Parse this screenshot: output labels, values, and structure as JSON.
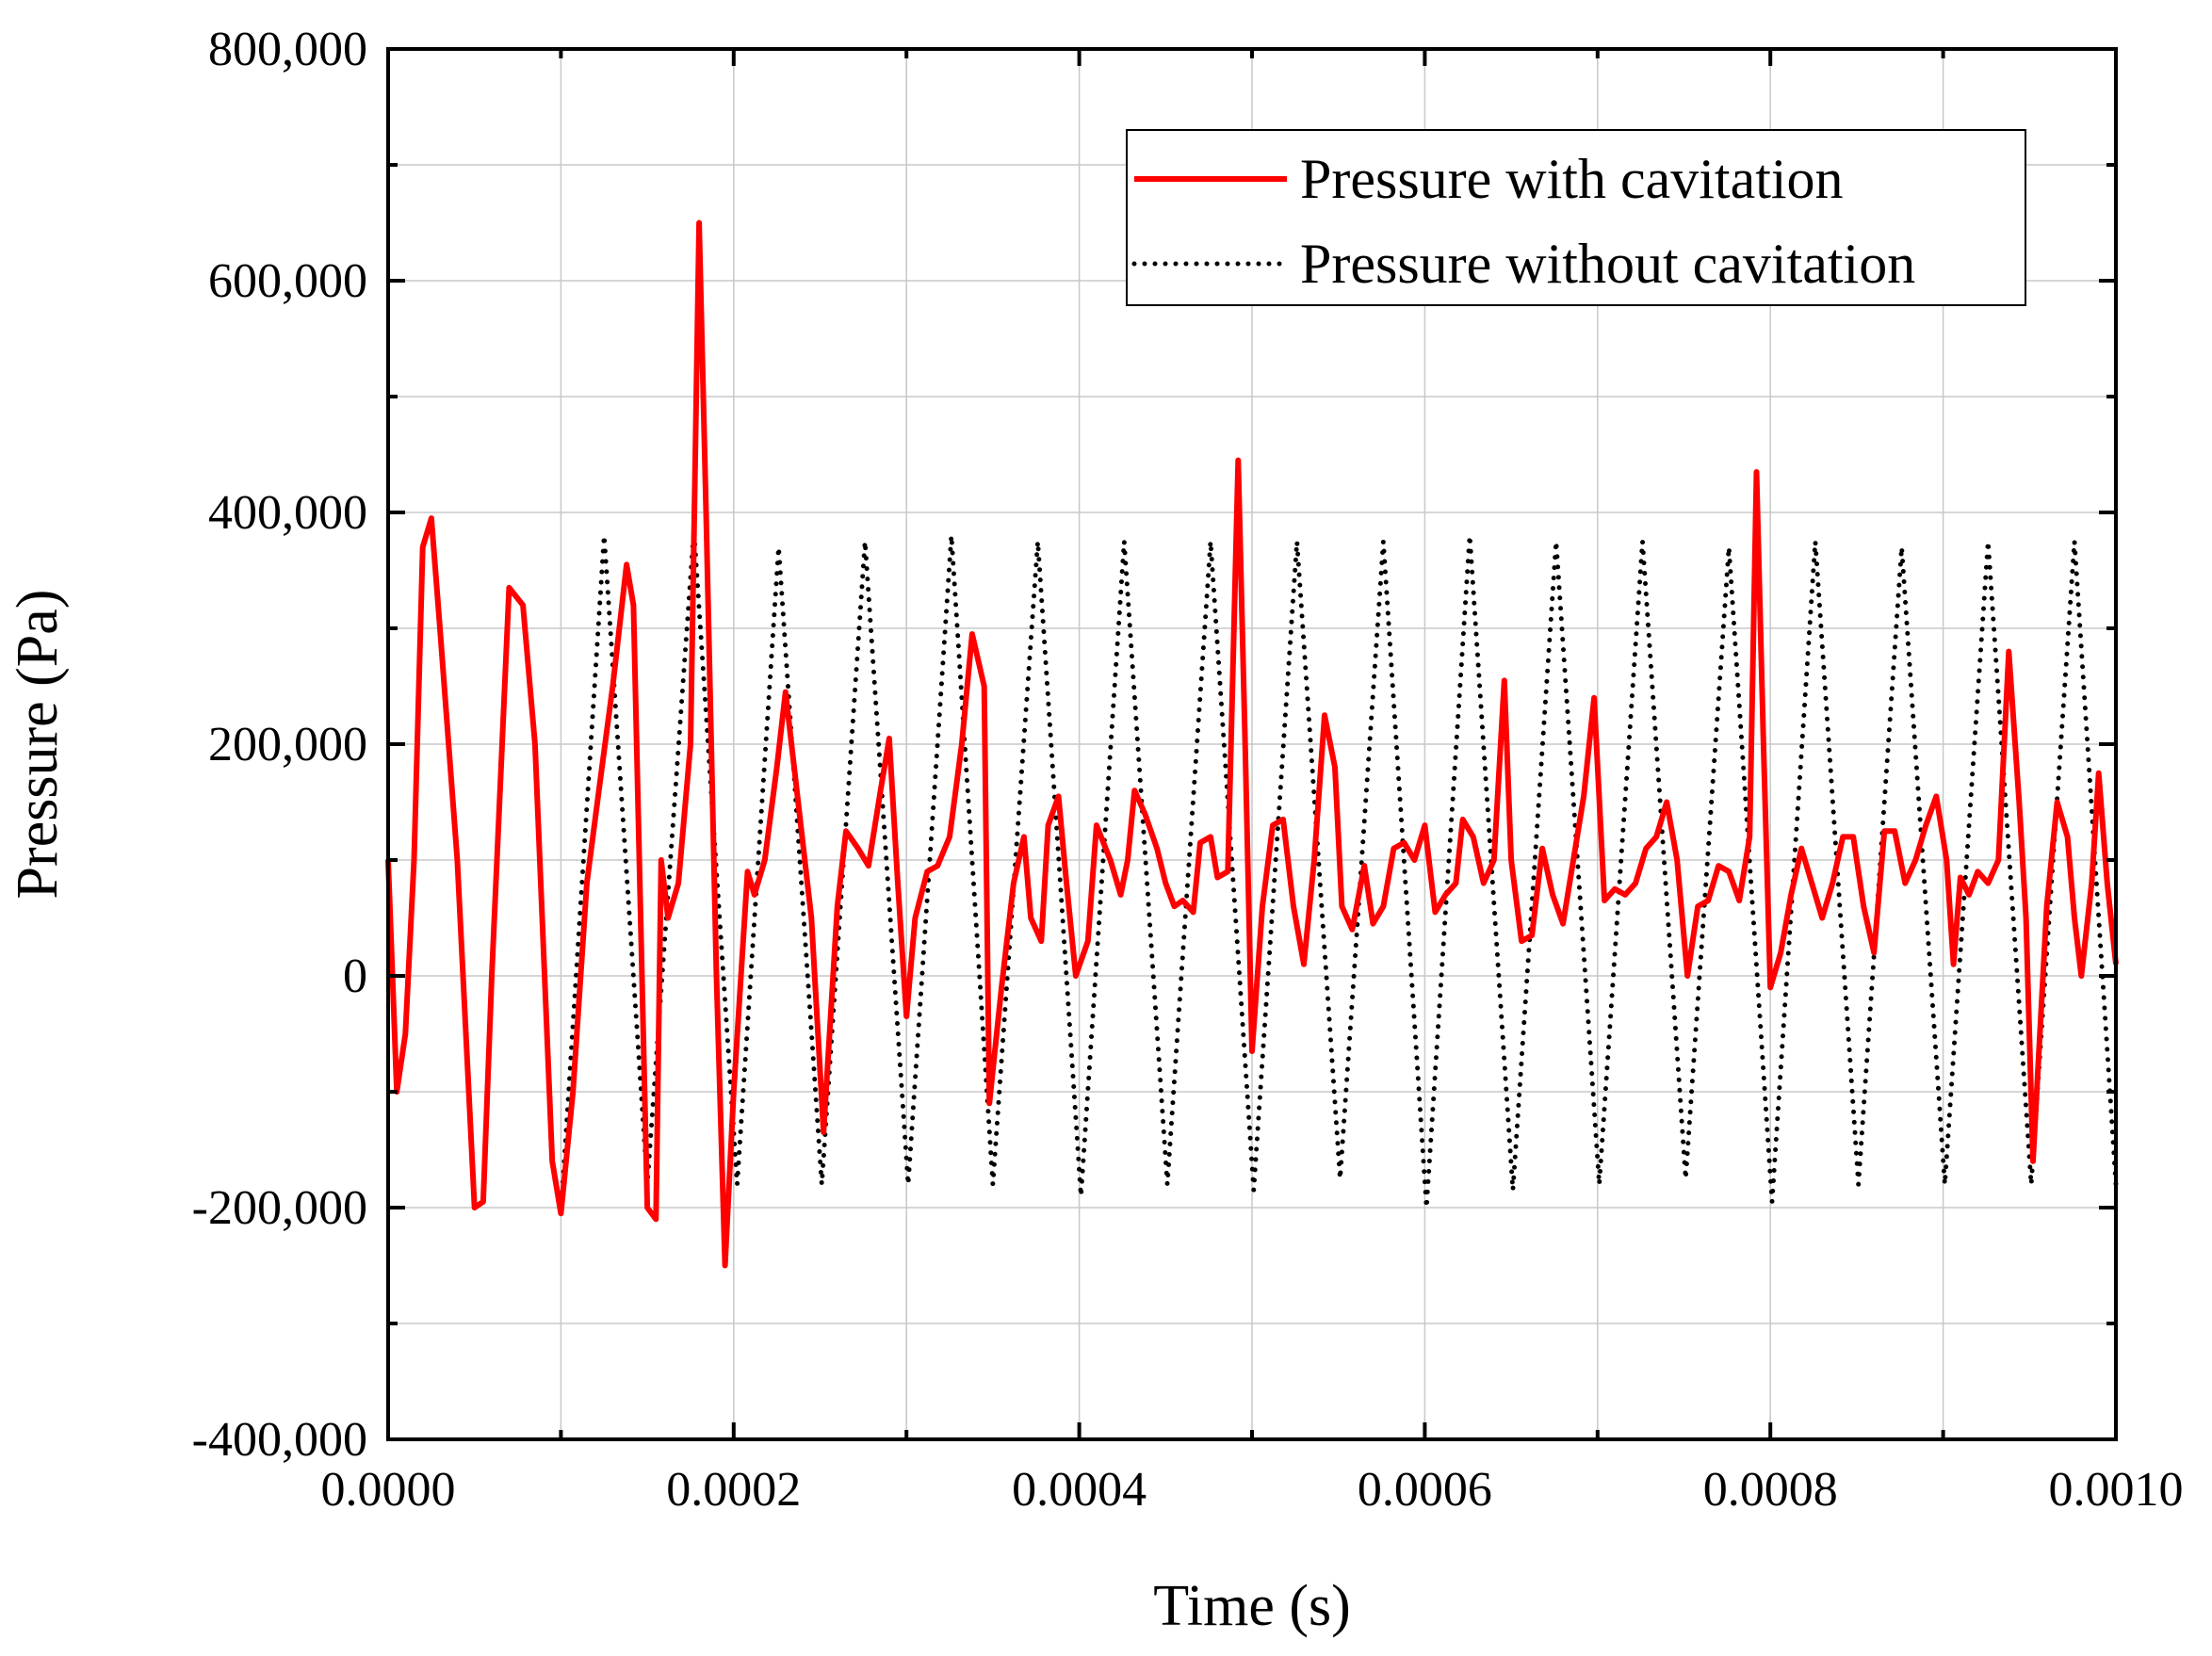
{
  "chart_data": {
    "type": "line",
    "title": "",
    "xlabel": "Time (s)",
    "ylabel": "Pressure (Pa)",
    "xlim": [
      0,
      0.001
    ],
    "ylim": [
      -400000,
      800000
    ],
    "grid": true,
    "legend_position": "top-right",
    "x_ticks": [
      0,
      0.0002,
      0.0004,
      0.0006,
      0.0008,
      0.001
    ],
    "x_tick_labels": [
      "0.0000",
      "0.0002",
      "0.0004",
      "0.0006",
      "0.0008",
      "0.0010"
    ],
    "y_ticks": [
      -400000,
      -200000,
      0,
      200000,
      400000,
      600000,
      800000
    ],
    "y_tick_labels": [
      "-400,000",
      "-200,000",
      "0",
      "200,000",
      "400,000",
      "600,000",
      "800,000"
    ],
    "series": [
      {
        "name": "Pressure with cavitation",
        "color": "#ff0000",
        "style": "solid",
        "points": [
          [
            0,
            100000
          ],
          [
            5e-06,
            -100000
          ],
          [
            1e-05,
            -50000
          ],
          [
            1.5e-05,
            100000
          ],
          [
            2e-05,
            370000
          ],
          [
            2.5e-05,
            395000
          ],
          [
            3e-05,
            300000
          ],
          [
            4e-05,
            100000
          ],
          [
            5e-05,
            -200000
          ],
          [
            5.5e-05,
            -195000
          ],
          [
            6e-05,
            0
          ],
          [
            7e-05,
            335000
          ],
          [
            7.8e-05,
            320000
          ],
          [
            8.5e-05,
            200000
          ],
          [
            9.5e-05,
            -160000
          ],
          [
            0.0001,
            -205000
          ],
          [
            0.000107,
            -100000
          ],
          [
            0.000115,
            80000
          ],
          [
            0.000122,
            160000
          ],
          [
            0.00013,
            250000
          ],
          [
            0.000138,
            355000
          ],
          [
            0.000142,
            320000
          ],
          [
            0.00015,
            -200000
          ],
          [
            0.000155,
            -210000
          ],
          [
            0.000158,
            100000
          ],
          [
            0.000162,
            50000
          ],
          [
            0.000168,
            80000
          ],
          [
            0.000175,
            200000
          ],
          [
            0.00018,
            650000
          ],
          [
            0.000184,
            400000
          ],
          [
            0.00019,
            0
          ],
          [
            0.000195,
            -250000
          ],
          [
            0.0002,
            -100000
          ],
          [
            0.000208,
            90000
          ],
          [
            0.000212,
            70000
          ],
          [
            0.000218,
            100000
          ],
          [
            0.000225,
            180000
          ],
          [
            0.00023,
            245000
          ],
          [
            0.000235,
            180000
          ],
          [
            0.000245,
            50000
          ],
          [
            0.000252,
            -135000
          ],
          [
            0.00026,
            60000
          ],
          [
            0.000265,
            125000
          ],
          [
            0.000272,
            110000
          ],
          [
            0.000278,
            95000
          ],
          [
            0.000285,
            160000
          ],
          [
            0.00029,
            205000
          ],
          [
            0.000295,
            80000
          ],
          [
            0.0003,
            -35000
          ],
          [
            0.000305,
            50000
          ],
          [
            0.000312,
            90000
          ],
          [
            0.000318,
            95000
          ],
          [
            0.000325,
            120000
          ],
          [
            0.000332,
            200000
          ],
          [
            0.000338,
            295000
          ],
          [
            0.000345,
            250000
          ],
          [
            0.000348,
            -110000
          ],
          [
            0.000355,
            -10000
          ],
          [
            0.000362,
            80000
          ],
          [
            0.000368,
            120000
          ],
          [
            0.000372,
            50000
          ],
          [
            0.000378,
            30000
          ],
          [
            0.000382,
            130000
          ],
          [
            0.000388,
            155000
          ],
          [
            0.000392,
            90000
          ],
          [
            0.000398,
            0
          ],
          [
            0.000405,
            30000
          ],
          [
            0.00041,
            130000
          ],
          [
            0.000418,
            100000
          ],
          [
            0.000424,
            70000
          ],
          [
            0.000428,
            100000
          ],
          [
            0.000432,
            160000
          ],
          [
            0.000438,
            140000
          ],
          [
            0.000445,
            110000
          ],
          [
            0.00045,
            80000
          ],
          [
            0.000455,
            60000
          ],
          [
            0.00046,
            65000
          ],
          [
            0.000466,
            55000
          ],
          [
            0.00047,
            115000
          ],
          [
            0.000476,
            120000
          ],
          [
            0.00048,
            85000
          ],
          [
            0.000486,
            90000
          ],
          [
            0.000492,
            445000
          ],
          [
            0.000496,
            200000
          ],
          [
            0.0005,
            -65000
          ],
          [
            0.000506,
            60000
          ],
          [
            0.000512,
            130000
          ],
          [
            0.000518,
            135000
          ],
          [
            0.000524,
            60000
          ],
          [
            0.00053,
            10000
          ],
          [
            0.000536,
            100000
          ],
          [
            0.000542,
            225000
          ],
          [
            0.000548,
            180000
          ],
          [
            0.000552,
            60000
          ],
          [
            0.000558,
            40000
          ],
          [
            0.000565,
            95000
          ],
          [
            0.00057,
            45000
          ],
          [
            0.000576,
            60000
          ],
          [
            0.000582,
            110000
          ],
          [
            0.000588,
            115000
          ],
          [
            0.000594,
            100000
          ],
          [
            0.0006,
            130000
          ],
          [
            0.000606,
            55000
          ],
          [
            0.000612,
            70000
          ],
          [
            0.000618,
            80000
          ],
          [
            0.000622,
            135000
          ],
          [
            0.000628,
            120000
          ],
          [
            0.000634,
            80000
          ],
          [
            0.00064,
            100000
          ],
          [
            0.000646,
            255000
          ],
          [
            0.00065,
            100000
          ],
          [
            0.000656,
            30000
          ],
          [
            0.000662,
            35000
          ],
          [
            0.000668,
            110000
          ],
          [
            0.000674,
            70000
          ],
          [
            0.00068,
            45000
          ],
          [
            0.000686,
            100000
          ],
          [
            0.000692,
            155000
          ],
          [
            0.000698,
            240000
          ],
          [
            0.000704,
            65000
          ],
          [
            0.00071,
            75000
          ],
          [
            0.000716,
            70000
          ],
          [
            0.000722,
            80000
          ],
          [
            0.000728,
            110000
          ],
          [
            0.000734,
            120000
          ],
          [
            0.00074,
            150000
          ],
          [
            0.000746,
            100000
          ],
          [
            0.000752,
            0
          ],
          [
            0.000758,
            60000
          ],
          [
            0.000764,
            65000
          ],
          [
            0.00077,
            95000
          ],
          [
            0.000776,
            90000
          ],
          [
            0.000782,
            65000
          ],
          [
            0.000788,
            120000
          ],
          [
            0.000792,
            435000
          ],
          [
            0.000796,
            200000
          ],
          [
            0.0008,
            -10000
          ],
          [
            0.000806,
            20000
          ],
          [
            0.000812,
            70000
          ],
          [
            0.000818,
            110000
          ],
          [
            0.000824,
            80000
          ],
          [
            0.00083,
            50000
          ],
          [
            0.000836,
            80000
          ],
          [
            0.000842,
            120000
          ],
          [
            0.000848,
            120000
          ],
          [
            0.000854,
            60000
          ],
          [
            0.00086,
            20000
          ],
          [
            0.000866,
            125000
          ],
          [
            0.000872,
            125000
          ],
          [
            0.000878,
            80000
          ],
          [
            0.000884,
            100000
          ],
          [
            0.00089,
            130000
          ],
          [
            0.000896,
            155000
          ],
          [
            0.000902,
            100000
          ],
          [
            0.000906,
            10000
          ],
          [
            0.00091,
            85000
          ],
          [
            0.000915,
            70000
          ],
          [
            0.00092,
            90000
          ],
          [
            0.000926,
            80000
          ],
          [
            0.000932,
            100000
          ],
          [
            0.000938,
            280000
          ],
          [
            0.000944,
            150000
          ],
          [
            0.000948,
            50000
          ],
          [
            0.000952,
            -160000
          ],
          [
            0.000956,
            -50000
          ],
          [
            0.00096,
            60000
          ],
          [
            0.000966,
            150000
          ],
          [
            0.000972,
            120000
          ],
          [
            0.000976,
            50000
          ],
          [
            0.00098,
            0
          ],
          [
            0.000986,
            80000
          ],
          [
            0.00099,
            175000
          ],
          [
            0.000995,
            80000
          ],
          [
            0.001,
            10000
          ]
        ]
      },
      {
        "name": "Pressure without cavitation",
        "color": "#000000",
        "style": "dotted",
        "points": [
          [
            0,
            100000
          ],
          [
            5e-06,
            -100000
          ],
          [
            1e-05,
            -50000
          ],
          [
            1.5e-05,
            100000
          ],
          [
            2e-05,
            370000
          ],
          [
            2.5e-05,
            395000
          ],
          [
            3e-05,
            300000
          ],
          [
            4e-05,
            100000
          ],
          [
            5e-05,
            -200000
          ],
          [
            5.5e-05,
            -195000
          ],
          [
            6e-05,
            0
          ],
          [
            7e-05,
            335000
          ],
          [
            7.8e-05,
            320000
          ],
          [
            8.5e-05,
            200000
          ],
          [
            9.5e-05,
            -160000
          ],
          [
            0.0001,
            -205000
          ],
          [
            0.000125,
            380000
          ],
          [
            0.00015,
            -180000
          ],
          [
            0.000177,
            385000
          ],
          [
            0.000202,
            -180000
          ],
          [
            0.000226,
            370000
          ],
          [
            0.000251,
            -180000
          ],
          [
            0.000276,
            375000
          ],
          [
            0.000301,
            -180000
          ],
          [
            0.000326,
            380000
          ],
          [
            0.00035,
            -180000
          ],
          [
            0.000376,
            375000
          ],
          [
            0.000401,
            -190000
          ],
          [
            0.000426,
            375000
          ],
          [
            0.000451,
            -180000
          ],
          [
            0.000476,
            375000
          ],
          [
            0.000501,
            -185000
          ],
          [
            0.000526,
            375000
          ],
          [
            0.000551,
            -175000
          ],
          [
            0.000576,
            375000
          ],
          [
            0.000601,
            -200000
          ],
          [
            0.000626,
            380000
          ],
          [
            0.000651,
            -185000
          ],
          [
            0.000676,
            375000
          ],
          [
            0.000701,
            -180000
          ],
          [
            0.000726,
            375000
          ],
          [
            0.000751,
            -175000
          ],
          [
            0.000776,
            370000
          ],
          [
            0.000801,
            -195000
          ],
          [
            0.000826,
            375000
          ],
          [
            0.000851,
            -180000
          ],
          [
            0.000876,
            370000
          ],
          [
            0.000901,
            -180000
          ],
          [
            0.000926,
            375000
          ],
          [
            0.000951,
            -180000
          ],
          [
            0.000976,
            375000
          ],
          [
            0.001,
            -180000
          ]
        ]
      }
    ]
  }
}
